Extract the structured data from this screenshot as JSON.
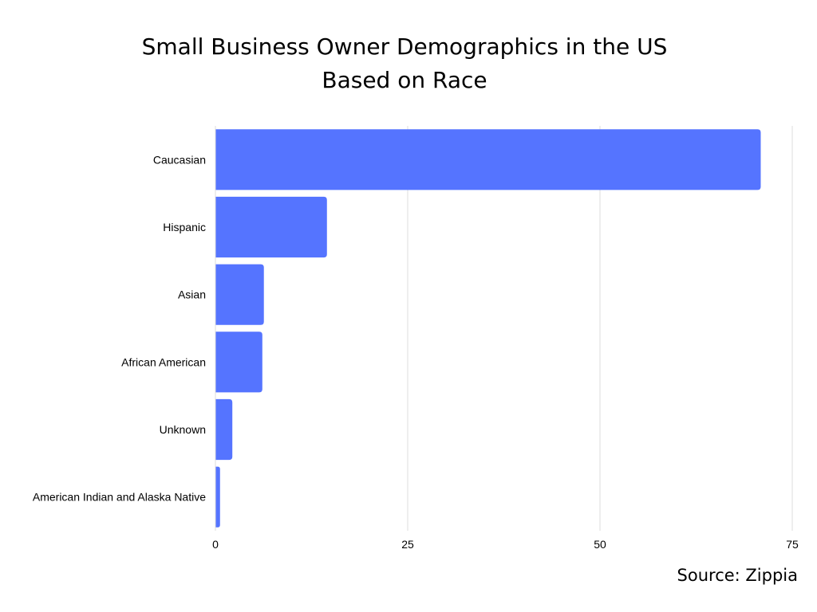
{
  "chart_data": {
    "type": "bar",
    "orientation": "horizontal",
    "title_line1": "Small Business Owner Demographics in the US",
    "title_line2": "Based on Race",
    "categories": [
      "Caucasian",
      "Hispanic",
      "Asian",
      "African American",
      "Unknown",
      "American Indian and Alaska Native"
    ],
    "values": [
      70.9,
      14.5,
      6.3,
      6.1,
      2.2,
      0.6
    ],
    "xlim": [
      0,
      75
    ],
    "xticks": [
      "0",
      "25",
      "50",
      "75"
    ],
    "grid": "vertical",
    "legend": "none",
    "bar_color": "#5574ff",
    "grid_color": "#dddddd",
    "source": "Source: Zippia"
  }
}
